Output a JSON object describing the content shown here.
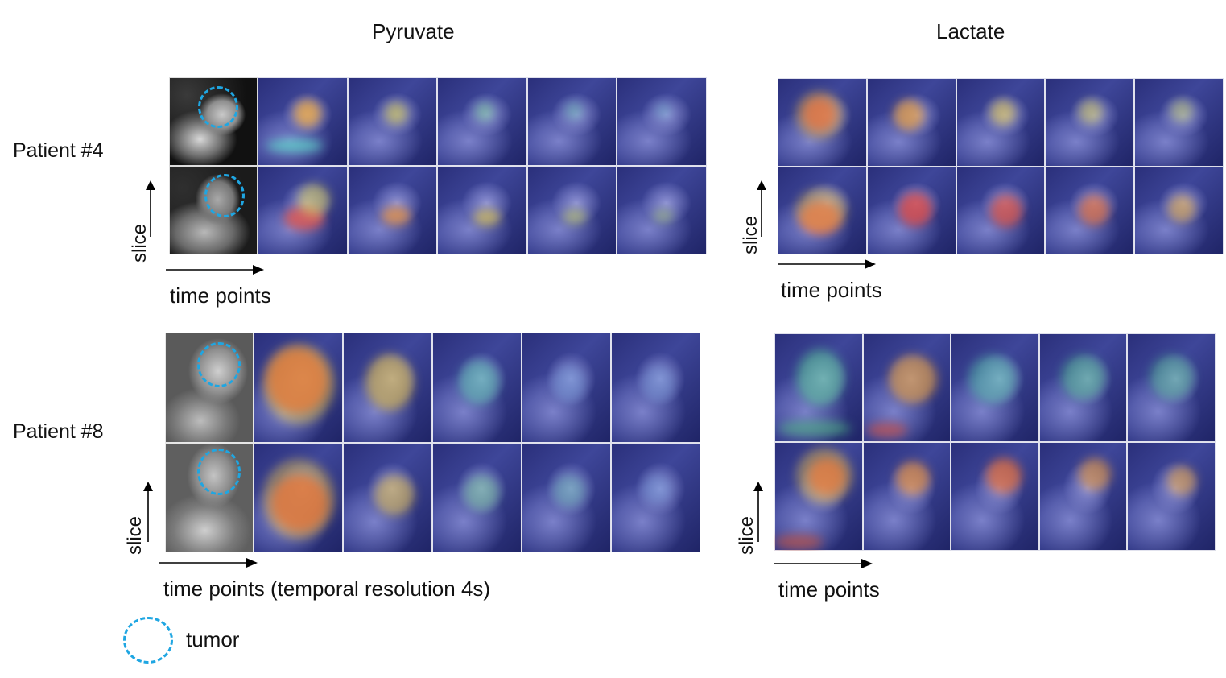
{
  "columns": {
    "pyruvate_title": "Pyruvate",
    "lactate_title": "Lactate"
  },
  "rows": {
    "patient4_label": "Patient #4",
    "patient8_label": "Patient #8"
  },
  "axes": {
    "slice_label": "slice",
    "time_label": "time points",
    "time_label_resolution": "time points (temporal resolution 4s)"
  },
  "legend": {
    "tumor_label": "tumor"
  },
  "colors": {
    "tumor_outline": "#1fa6e2"
  }
}
